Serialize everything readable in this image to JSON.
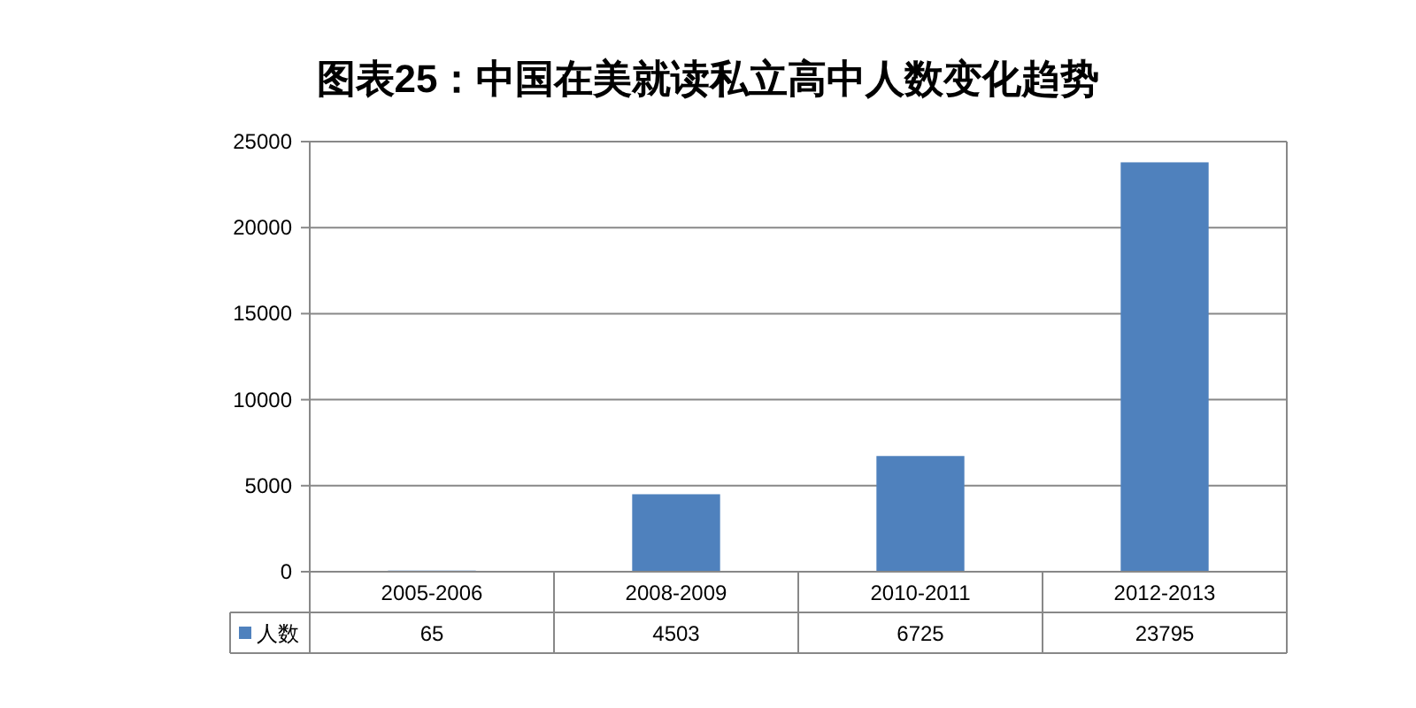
{
  "chart_data": {
    "type": "bar",
    "title": "图表25：中国在美就读私立高中人数变化趋势",
    "categories": [
      "2005-2006",
      "2008-2009",
      "2010-2011",
      "2012-2013"
    ],
    "series": [
      {
        "name": "人数",
        "color": "#4f81bd",
        "values": [
          65,
          4503,
          6725,
          23795
        ]
      }
    ],
    "ylim": [
      0,
      25000
    ],
    "yticks": [
      0,
      5000,
      10000,
      15000,
      20000,
      25000
    ],
    "grid": "y",
    "data_labels": true
  }
}
